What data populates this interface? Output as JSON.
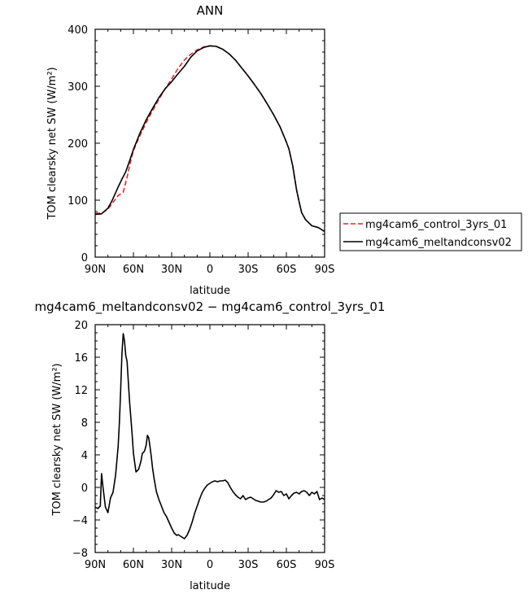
{
  "chart_data": [
    {
      "type": "line",
      "title": "ANN",
      "xlabel": "latitude",
      "ylabel": "TOM clearsky net SW (W/m²)",
      "xlim": [
        -90,
        90
      ],
      "ylim": [
        0,
        400
      ],
      "x_ticks": [
        -90,
        -60,
        -30,
        0,
        30,
        60,
        90
      ],
      "x_tick_labels": [
        "90N",
        "60N",
        "30N",
        "0",
        "30S",
        "60S",
        "90S"
      ],
      "y_ticks": [
        0,
        100,
        200,
        300,
        400
      ],
      "y_tick_labels": [
        "0",
        "100",
        "200",
        "300",
        "400"
      ],
      "legend_position": "right",
      "series": [
        {
          "name": "mg4cam6_control_3yrs_01",
          "color": "#e8262b",
          "dash": "dashed",
          "x": [
            -90,
            -85,
            -80,
            -75,
            -72,
            -68,
            -65,
            -62,
            -60,
            -55,
            -50,
            -45,
            -40,
            -35,
            -30,
            -25,
            -20,
            -15,
            -10,
            -5,
            0,
            5,
            10,
            15,
            20,
            25,
            30,
            35,
            40,
            45,
            50,
            55,
            60,
            62,
            65,
            68,
            70,
            72,
            75,
            80,
            85,
            90
          ],
          "y": [
            77,
            77,
            84,
            99,
            108,
            114,
            140,
            170,
            187,
            213,
            236,
            257,
            277,
            296,
            313,
            331,
            346,
            356,
            364,
            369,
            371,
            370,
            365,
            357,
            346,
            332,
            318,
            303,
            287,
            269,
            250,
            229,
            202,
            190,
            160,
            118,
            97,
            78,
            66,
            55,
            52,
            45
          ]
        },
        {
          "name": "mg4cam6_meltandconsv02",
          "color": "#000000",
          "dash": "solid",
          "x": [
            -90,
            -85,
            -80,
            -77,
            -75,
            -72,
            -69,
            -66,
            -63,
            -60,
            -55,
            -50,
            -45,
            -40,
            -35,
            -30,
            -25,
            -20,
            -15,
            -10,
            -5,
            0,
            5,
            10,
            15,
            20,
            25,
            30,
            35,
            40,
            45,
            50,
            55,
            60,
            62,
            65,
            68,
            70,
            72,
            75,
            80,
            85,
            90
          ],
          "y": [
            75,
            76,
            86,
            98,
            108,
            123,
            137,
            150,
            169,
            189,
            217,
            241,
            261,
            280,
            296,
            308,
            322,
            335,
            351,
            362,
            368,
            371,
            370,
            365,
            357,
            346,
            332,
            318,
            303,
            287,
            269,
            250,
            229,
            202,
            190,
            160,
            118,
            97,
            78,
            66,
            55,
            52,
            45
          ]
        }
      ]
    },
    {
      "type": "line",
      "title": "mg4cam6_meltandconsv02 − mg4cam6_control_3yrs_01",
      "xlabel": "latitude",
      "ylabel": "TOM clearsky net SW (W/m²)",
      "xlim": [
        -90,
        90
      ],
      "ylim": [
        -8,
        20
      ],
      "x_ticks": [
        -90,
        -60,
        -30,
        0,
        30,
        60,
        90
      ],
      "x_tick_labels": [
        "90N",
        "60N",
        "30N",
        "0",
        "30S",
        "60S",
        "90S"
      ],
      "y_ticks": [
        -8,
        -4,
        0,
        4,
        8,
        12,
        16,
        20
      ],
      "y_tick_labels": [
        "−8",
        "−4",
        "0",
        "4",
        "8",
        "12",
        "16",
        "20"
      ],
      "series": [
        {
          "color": "#000000",
          "dash": "solid",
          "x": [
            -90,
            -88,
            -86,
            -85,
            -84,
            -82,
            -80,
            -78,
            -76,
            -74,
            -72,
            -71,
            -70,
            -69,
            -68,
            -67,
            -66,
            -65,
            -64,
            -63,
            -62,
            -61,
            -60,
            -58,
            -56,
            -55,
            -54,
            -53,
            -52,
            -51,
            -50,
            -49,
            -48,
            -47,
            -46,
            -45,
            -44,
            -43,
            -42,
            -40,
            -38,
            -36,
            -34,
            -32,
            -30,
            -28,
            -26,
            -25,
            -24,
            -22,
            -20,
            -18,
            -16,
            -14,
            -12,
            -10,
            -8,
            -6,
            -4,
            -2,
            0,
            2,
            4,
            6,
            8,
            10,
            12,
            14,
            16,
            18,
            20,
            22,
            24,
            26,
            28,
            30,
            32,
            34,
            36,
            38,
            40,
            42,
            44,
            46,
            48,
            50,
            52,
            54,
            56,
            58,
            60,
            62,
            64,
            66,
            68,
            70,
            72,
            74,
            76,
            78,
            80,
            82,
            84,
            86,
            88,
            90
          ],
          "y": [
            -2.4,
            -2.6,
            -2.3,
            1.7,
            0.2,
            -2.4,
            -3.1,
            -1.3,
            -0.6,
            1.5,
            5.0,
            8.0,
            12.0,
            16.5,
            18.9,
            18.0,
            16.2,
            15.5,
            13.0,
            10.5,
            8.5,
            6.5,
            4.2,
            1.9,
            2.2,
            2.7,
            3.3,
            4.2,
            4.3,
            4.6,
            5.2,
            6.4,
            6.1,
            5.0,
            3.8,
            2.4,
            1.3,
            0.4,
            -0.5,
            -1.5,
            -2.3,
            -3.1,
            -3.6,
            -4.3,
            -5.0,
            -5.6,
            -5.9,
            -5.8,
            -5.9,
            -6.1,
            -6.3,
            -5.9,
            -5.2,
            -4.3,
            -3.2,
            -2.3,
            -1.4,
            -0.6,
            -0.1,
            0.3,
            0.5,
            0.7,
            0.8,
            0.7,
            0.8,
            0.8,
            0.9,
            0.6,
            0.0,
            -0.5,
            -0.9,
            -1.2,
            -1.4,
            -1.0,
            -1.5,
            -1.3,
            -1.2,
            -1.4,
            -1.6,
            -1.7,
            -1.8,
            -1.8,
            -1.7,
            -1.5,
            -1.3,
            -0.9,
            -0.4,
            -0.6,
            -0.5,
            -1.0,
            -0.8,
            -1.4,
            -1.0,
            -0.7,
            -0.6,
            -0.8,
            -0.5,
            -0.4,
            -0.6,
            -1.0,
            -0.6,
            -0.8,
            -0.5,
            -1.5,
            -1.3,
            -1.5
          ]
        }
      ]
    }
  ]
}
